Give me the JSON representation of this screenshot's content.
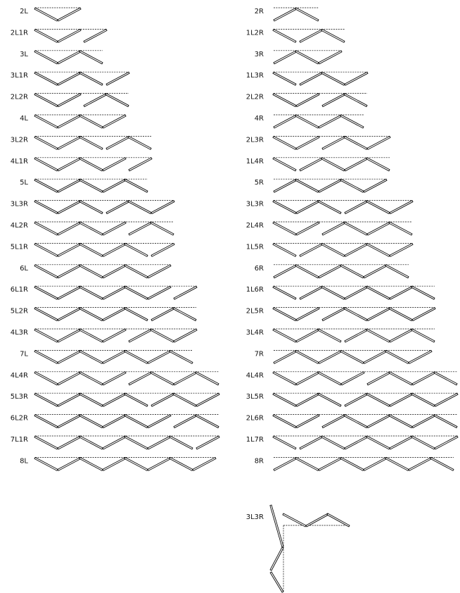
{
  "figure": {
    "left_column": [
      "2L",
      "2L1R",
      "3L",
      "3L1R",
      "2L2R",
      "4L",
      "3L2R",
      "4L1R",
      "5L",
      "3L3R",
      "4L2R",
      "5L1R",
      "6L",
      "6L1R",
      "5L2R",
      "4L3R",
      "7L",
      "4L4R",
      "5L3R",
      "6L2R",
      "7L1R",
      "8L"
    ],
    "right_column": [
      "2R",
      "1L2R",
      "3R",
      "1L3R",
      "2L2R",
      "4R",
      "2L3R",
      "1L4R",
      "5R",
      "3L3R",
      "2L4R",
      "1L5R",
      "6R",
      "1L6R",
      "2L5R",
      "3L4R",
      "7R",
      "4L4R",
      "3L5R",
      "2L6R",
      "1L7R",
      "8R"
    ],
    "corner_example": "3L3R"
  }
}
